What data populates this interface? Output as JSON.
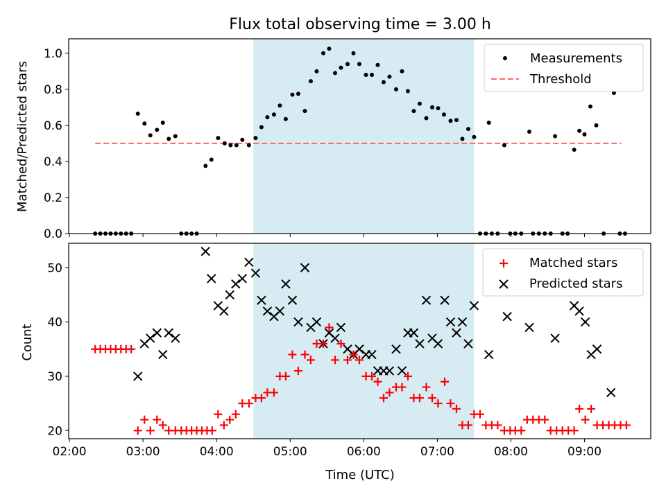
{
  "title": "Flux total observing time = 3.00 h",
  "colors": {
    "window": "#add8e6",
    "measurements": "#000000",
    "threshold": "#ff6666",
    "matched": "#ff0000",
    "predicted": "#000000"
  },
  "chart_data": [
    {
      "type": "scatter",
      "ylabel": "Matched/Predicted stars",
      "ylim": [
        0,
        1.08
      ],
      "xlim": [
        1.99,
        9.9
      ],
      "ytick_values": [
        0,
        0.2,
        0.4,
        0.6,
        0.8,
        1.0
      ],
      "ytick_labels": [
        "0.0",
        "0.2",
        "0.4",
        "0.6",
        "0.8",
        "1.0"
      ],
      "shaded_window": [
        4.5,
        7.5
      ],
      "legend_position": "top-right",
      "series": [
        {
          "name": "Measurements",
          "marker": "dot",
          "points": [
            [
              2.35,
              0
            ],
            [
              2.42,
              0
            ],
            [
              2.49,
              0
            ],
            [
              2.56,
              0
            ],
            [
              2.63,
              0
            ],
            [
              2.7,
              0
            ],
            [
              2.77,
              0
            ],
            [
              2.84,
              0
            ],
            [
              2.93,
              0.665
            ],
            [
              3.02,
              0.61
            ],
            [
              3.1,
              0.545
            ],
            [
              3.19,
              0.575
            ],
            [
              3.27,
              0.615
            ],
            [
              3.35,
              0.525
            ],
            [
              3.44,
              0.54
            ],
            [
              3.52,
              0
            ],
            [
              3.59,
              0
            ],
            [
              3.66,
              0
            ],
            [
              3.73,
              0
            ],
            [
              3.85,
              0.375
            ],
            [
              3.93,
              0.41
            ],
            [
              4.02,
              0.53
            ],
            [
              4.11,
              0.5
            ],
            [
              4.19,
              0.49
            ],
            [
              4.27,
              0.49
            ],
            [
              4.35,
              0.52
            ],
            [
              4.44,
              0.49
            ],
            [
              4.53,
              0.53
            ],
            [
              4.61,
              0.59
            ],
            [
              4.69,
              0.645
            ],
            [
              4.78,
              0.66
            ],
            [
              4.86,
              0.71
            ],
            [
              4.94,
              0.635
            ],
            [
              5.03,
              0.77
            ],
            [
              5.11,
              0.775
            ],
            [
              5.2,
              0.68
            ],
            [
              5.28,
              0.845
            ],
            [
              5.36,
              0.9
            ],
            [
              5.45,
              1.0
            ],
            [
              5.53,
              1.025
            ],
            [
              5.61,
              0.89
            ],
            [
              5.69,
              0.92
            ],
            [
              5.78,
              0.94
            ],
            [
              5.86,
              1.0
            ],
            [
              5.94,
              0.94
            ],
            [
              6.03,
              0.88
            ],
            [
              6.11,
              0.88
            ],
            [
              6.19,
              0.935
            ],
            [
              6.27,
              0.84
            ],
            [
              6.35,
              0.87
            ],
            [
              6.44,
              0.8
            ],
            [
              6.52,
              0.9
            ],
            [
              6.6,
              0.79
            ],
            [
              6.68,
              0.68
            ],
            [
              6.76,
              0.72
            ],
            [
              6.85,
              0.64
            ],
            [
              6.93,
              0.7
            ],
            [
              7.01,
              0.695
            ],
            [
              7.09,
              0.66
            ],
            [
              7.18,
              0.625
            ],
            [
              7.26,
              0.63
            ],
            [
              7.34,
              0.525
            ],
            [
              7.42,
              0.58
            ],
            [
              7.5,
              0.535
            ],
            [
              7.58,
              0
            ],
            [
              7.66,
              0
            ],
            [
              7.74,
              0
            ],
            [
              7.82,
              0
            ],
            [
              7.7,
              0.615
            ],
            [
              7.91,
              0.49
            ],
            [
              7.99,
              0
            ],
            [
              8.06,
              0
            ],
            [
              8.14,
              0
            ],
            [
              8.3,
              0
            ],
            [
              8.38,
              0
            ],
            [
              8.46,
              0
            ],
            [
              8.54,
              0
            ],
            [
              8.25,
              0.565
            ],
            [
              8.6,
              0.54
            ],
            [
              8.7,
              0
            ],
            [
              8.77,
              0
            ],
            [
              8.86,
              0.465
            ],
            [
              8.93,
              0.57
            ],
            [
              9.0,
              0.55
            ],
            [
              9.08,
              0.705
            ],
            [
              9.16,
              0.6
            ],
            [
              9.26,
              0
            ],
            [
              9.4,
              0.78
            ],
            [
              9.48,
              0
            ],
            [
              9.55,
              0
            ]
          ]
        },
        {
          "name": "Threshold",
          "marker": "dashed-line",
          "points": [
            [
              2.35,
              0.5
            ],
            [
              9.5,
              0.5
            ]
          ]
        }
      ]
    },
    {
      "type": "scatter",
      "xlabel": "Time (UTC)",
      "ylabel": "Count",
      "ylim": [
        18.5,
        54.5
      ],
      "xlim": [
        1.99,
        9.9
      ],
      "ytick_values": [
        20,
        30,
        40,
        50
      ],
      "ytick_labels": [
        "20",
        "30",
        "40",
        "50"
      ],
      "xtick_values": [
        2,
        3,
        4,
        5,
        6,
        7,
        8,
        9
      ],
      "xtick_labels": [
        "02:00",
        "03:00",
        "04:00",
        "05:00",
        "06:00",
        "07:00",
        "08:00",
        "09:00"
      ],
      "shaded_window": [
        4.5,
        7.5
      ],
      "legend_position": "top-right",
      "series": [
        {
          "name": "Matched stars",
          "marker": "plus",
          "points": [
            [
              2.35,
              35
            ],
            [
              2.42,
              35
            ],
            [
              2.49,
              35
            ],
            [
              2.56,
              35
            ],
            [
              2.63,
              35
            ],
            [
              2.7,
              35
            ],
            [
              2.77,
              35
            ],
            [
              2.84,
              35
            ],
            [
              2.93,
              20
            ],
            [
              3.02,
              22
            ],
            [
              3.1,
              20
            ],
            [
              3.19,
              22
            ],
            [
              3.27,
              21
            ],
            [
              3.35,
              20
            ],
            [
              3.44,
              20
            ],
            [
              3.52,
              20
            ],
            [
              3.59,
              20
            ],
            [
              3.66,
              20
            ],
            [
              3.73,
              20
            ],
            [
              3.8,
              20
            ],
            [
              3.87,
              20
            ],
            [
              3.94,
              20
            ],
            [
              4.02,
              23
            ],
            [
              4.1,
              21
            ],
            [
              4.18,
              22
            ],
            [
              4.26,
              23
            ],
            [
              4.35,
              25
            ],
            [
              4.44,
              25
            ],
            [
              4.53,
              26
            ],
            [
              4.61,
              26
            ],
            [
              4.69,
              27
            ],
            [
              4.78,
              27
            ],
            [
              4.86,
              30
            ],
            [
              4.94,
              30
            ],
            [
              5.03,
              34
            ],
            [
              5.11,
              31
            ],
            [
              5.2,
              34
            ],
            [
              5.28,
              33
            ],
            [
              5.36,
              36
            ],
            [
              5.45,
              36
            ],
            [
              5.53,
              39
            ],
            [
              5.61,
              33
            ],
            [
              5.69,
              36
            ],
            [
              5.78,
              33
            ],
            [
              5.86,
              34
            ],
            [
              5.94,
              33
            ],
            [
              6.03,
              30
            ],
            [
              6.11,
              30
            ],
            [
              6.19,
              29
            ],
            [
              6.27,
              26
            ],
            [
              6.35,
              27
            ],
            [
              6.44,
              28
            ],
            [
              6.52,
              28
            ],
            [
              6.6,
              30
            ],
            [
              6.68,
              26
            ],
            [
              6.76,
              26
            ],
            [
              6.85,
              28
            ],
            [
              6.93,
              26
            ],
            [
              7.01,
              25
            ],
            [
              7.1,
              29
            ],
            [
              7.18,
              25
            ],
            [
              7.26,
              24
            ],
            [
              7.34,
              21
            ],
            [
              7.42,
              21
            ],
            [
              7.5,
              23
            ],
            [
              7.58,
              23
            ],
            [
              7.66,
              21
            ],
            [
              7.74,
              21
            ],
            [
              7.82,
              21
            ],
            [
              7.91,
              20
            ],
            [
              7.99,
              20
            ],
            [
              8.06,
              20
            ],
            [
              8.14,
              20
            ],
            [
              8.22,
              22
            ],
            [
              8.3,
              22
            ],
            [
              8.38,
              22
            ],
            [
              8.46,
              22
            ],
            [
              8.54,
              20
            ],
            [
              8.62,
              20
            ],
            [
              8.7,
              20
            ],
            [
              8.78,
              20
            ],
            [
              8.86,
              20
            ],
            [
              8.93,
              24
            ],
            [
              9.01,
              22
            ],
            [
              9.09,
              24
            ],
            [
              9.17,
              21
            ],
            [
              9.25,
              21
            ],
            [
              9.33,
              21
            ],
            [
              9.41,
              21
            ],
            [
              9.49,
              21
            ],
            [
              9.57,
              21
            ]
          ]
        },
        {
          "name": "Predicted stars",
          "marker": "x",
          "points": [
            [
              2.93,
              30
            ],
            [
              3.02,
              36
            ],
            [
              3.1,
              37
            ],
            [
              3.19,
              38
            ],
            [
              3.27,
              34
            ],
            [
              3.35,
              38
            ],
            [
              3.44,
              37
            ],
            [
              3.85,
              53
            ],
            [
              3.93,
              48
            ],
            [
              4.02,
              43
            ],
            [
              4.1,
              42
            ],
            [
              4.18,
              45
            ],
            [
              4.26,
              47
            ],
            [
              4.35,
              48
            ],
            [
              4.44,
              51
            ],
            [
              4.53,
              49
            ],
            [
              4.61,
              44
            ],
            [
              4.69,
              42
            ],
            [
              4.78,
              41
            ],
            [
              4.86,
              42
            ],
            [
              4.94,
              47
            ],
            [
              5.03,
              44
            ],
            [
              5.11,
              40
            ],
            [
              5.2,
              50
            ],
            [
              5.28,
              39
            ],
            [
              5.36,
              40
            ],
            [
              5.45,
              36
            ],
            [
              5.53,
              38
            ],
            [
              5.61,
              37
            ],
            [
              5.69,
              39
            ],
            [
              5.78,
              35
            ],
            [
              5.86,
              34
            ],
            [
              5.94,
              35
            ],
            [
              6.03,
              34
            ],
            [
              6.11,
              34
            ],
            [
              6.19,
              31
            ],
            [
              6.27,
              31
            ],
            [
              6.35,
              31
            ],
            [
              6.44,
              35
            ],
            [
              6.52,
              31
            ],
            [
              6.6,
              38
            ],
            [
              6.68,
              38
            ],
            [
              6.76,
              36
            ],
            [
              6.85,
              44
            ],
            [
              6.93,
              37
            ],
            [
              7.01,
              36
            ],
            [
              7.1,
              44
            ],
            [
              7.18,
              40
            ],
            [
              7.26,
              38
            ],
            [
              7.34,
              40
            ],
            [
              7.42,
              36
            ],
            [
              7.5,
              43
            ],
            [
              7.7,
              34
            ],
            [
              7.95,
              41
            ],
            [
              8.25,
              39
            ],
            [
              8.6,
              37
            ],
            [
              8.86,
              43
            ],
            [
              8.93,
              42
            ],
            [
              9.01,
              40
            ],
            [
              9.09,
              34
            ],
            [
              9.17,
              35
            ],
            [
              9.36,
              27
            ]
          ]
        }
      ]
    }
  ]
}
